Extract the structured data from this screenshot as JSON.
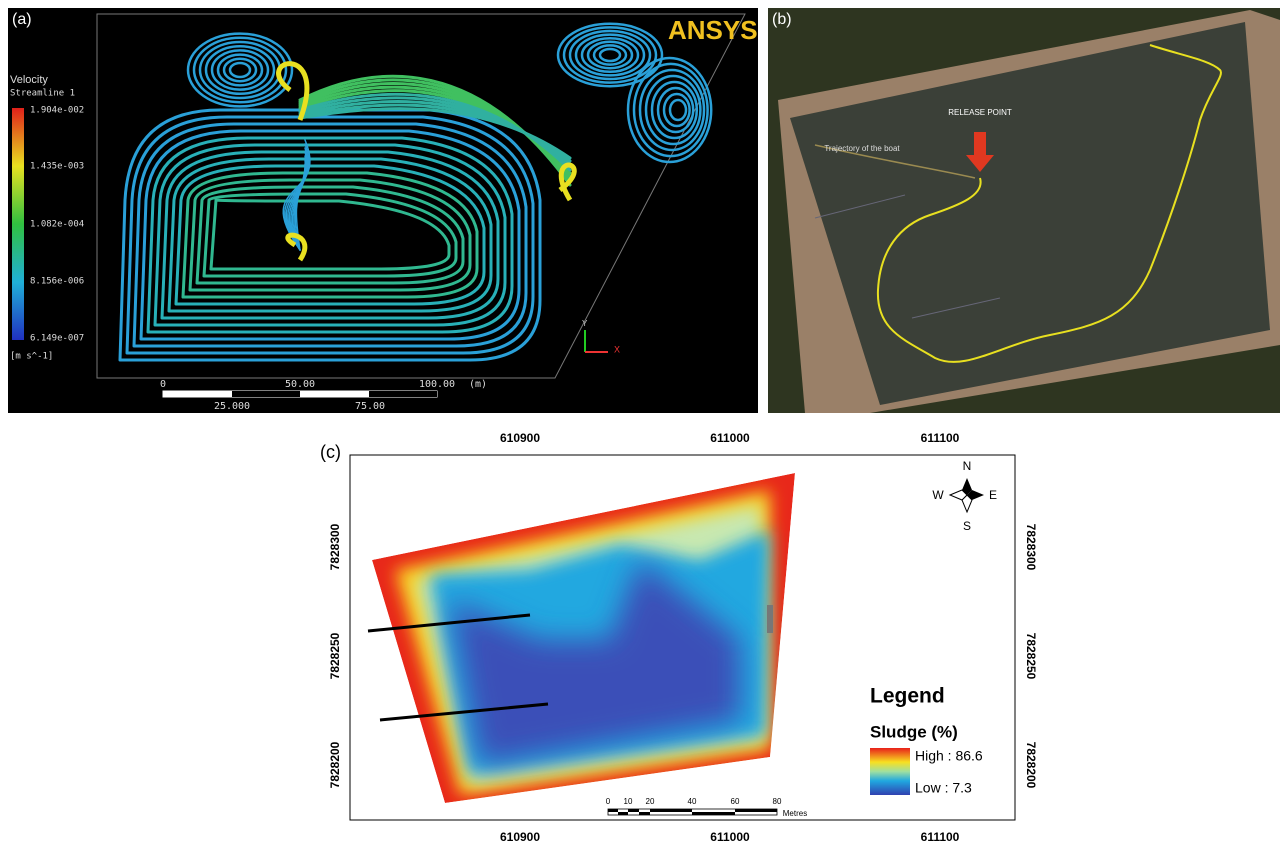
{
  "panel_a": {
    "label": "(a)",
    "logo": "ANSYS",
    "colorbar_title": "Velocity",
    "colorbar_subtitle": "Streamline 1",
    "colorbar_labels": [
      "1.904e-002",
      "1.435e-003",
      "1.082e-004",
      "8.156e-006",
      "6.149e-007"
    ],
    "colorbar_unit": "[m s^-1]",
    "scale_top": [
      "0",
      "50.00",
      "100.00"
    ],
    "scale_unit": "(m)",
    "scale_bottom": [
      "25.000",
      "75.00"
    ],
    "axis_y": "Y",
    "axis_x": "X"
  },
  "panel_b": {
    "label": "(b)",
    "release_point": "RELEASE POINT",
    "trajectory": "Trajectory of the boat"
  },
  "panel_c": {
    "label": "(c)",
    "x_labels": [
      "610900",
      "611000",
      "611100"
    ],
    "y_labels": [
      "7828300",
      "7828250",
      "7828200"
    ],
    "compass": {
      "n": "N",
      "s": "S",
      "e": "E",
      "w": "W"
    },
    "legend": {
      "title": "Legend",
      "subtitle": "Sludge (%)",
      "high": "High : 86.6",
      "low": "Low : 7.3"
    },
    "scale": [
      "0",
      "10",
      "20",
      "40",
      "60",
      "80"
    ],
    "scale_unit": "Metres"
  }
}
